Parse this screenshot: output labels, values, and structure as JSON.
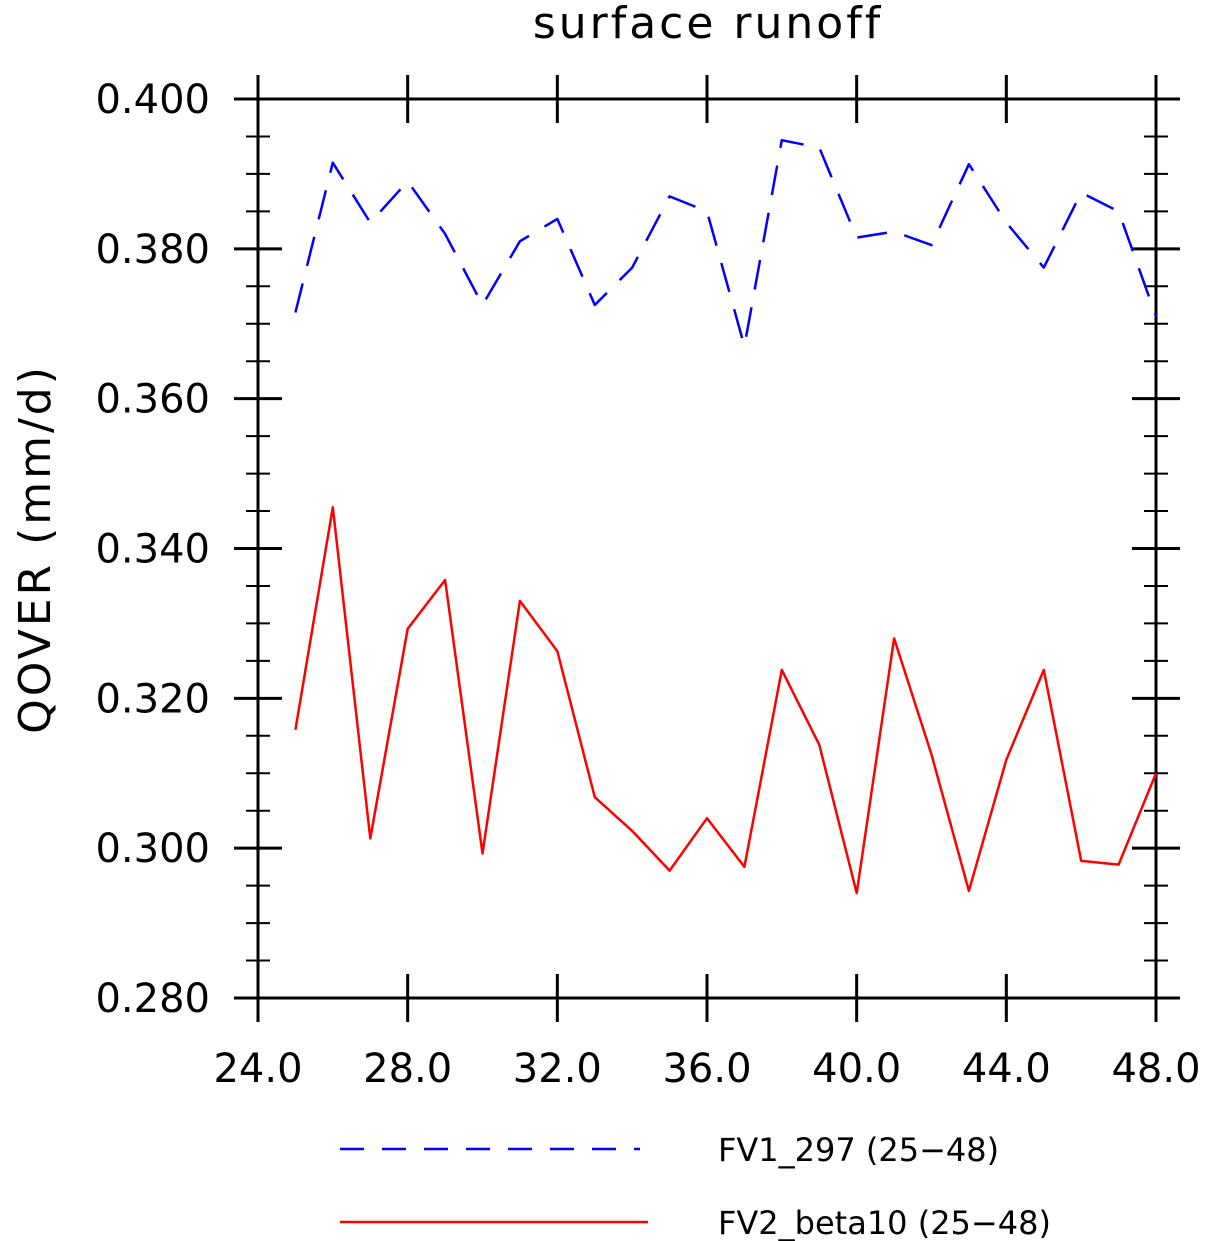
{
  "chart_data": {
    "type": "line",
    "title": "surface runoff",
    "xlabel": "",
    "ylabel": "QOVER   (mm/d)",
    "xlim": [
      24.0,
      48.0
    ],
    "ylim": [
      0.28,
      0.4
    ],
    "x_ticks": [
      "24.0",
      "28.0",
      "32.0",
      "36.0",
      "40.0",
      "44.0",
      "48.0"
    ],
    "y_ticks": [
      "0.280",
      "0.300",
      "0.320",
      "0.340",
      "0.360",
      "0.380",
      "0.400"
    ],
    "x": [
      25,
      26,
      27,
      28,
      29,
      30,
      31,
      32,
      33,
      34,
      35,
      36,
      37,
      38,
      39,
      40,
      41,
      42,
      43,
      44,
      45,
      46,
      47,
      48
    ],
    "legend_position": "bottom",
    "series": [
      {
        "name": "FV1_297 (25−48)",
        "color": "#0000ff",
        "dash": "dashed",
        "values": [
          0.3715,
          0.3915,
          0.3835,
          0.389,
          0.382,
          0.3725,
          0.381,
          0.384,
          0.3725,
          0.3775,
          0.387,
          0.385,
          0.367,
          0.3945,
          0.3935,
          0.3815,
          0.3823,
          0.3805,
          0.3913,
          0.3835,
          0.3775,
          0.3875,
          0.385,
          0.371
        ]
      },
      {
        "name": "FV2_beta10 (25−48)",
        "color": "#ff0000",
        "dash": "solid",
        "values": [
          0.3158,
          0.3455,
          0.3013,
          0.3293,
          0.3358,
          0.2993,
          0.333,
          0.3263,
          0.3068,
          0.3023,
          0.297,
          0.304,
          0.2975,
          0.3238,
          0.3138,
          0.294,
          0.328,
          0.3125,
          0.2943,
          0.3118,
          0.3238,
          0.2983,
          0.2978,
          0.31
        ]
      }
    ]
  }
}
